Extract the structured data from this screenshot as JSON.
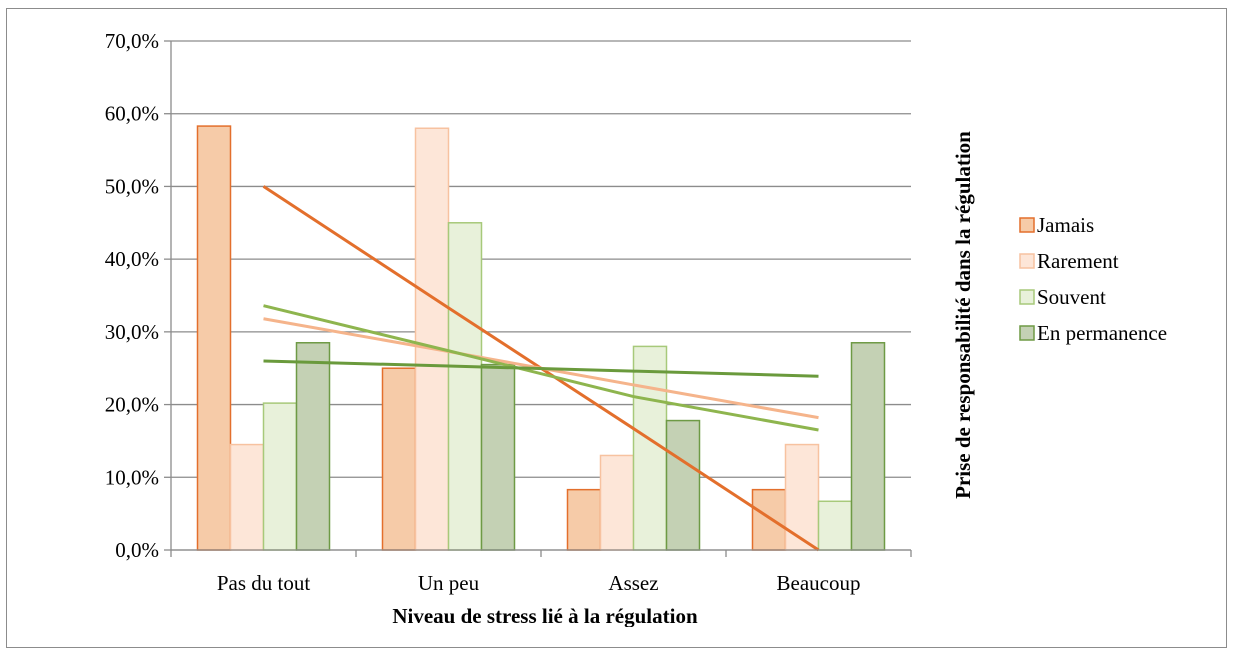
{
  "chart_data": {
    "type": "bar",
    "categories": [
      "Pas du tout",
      "Un peu",
      "Assez",
      "Beaucoup"
    ],
    "series": [
      {
        "name": "Jamais",
        "values": [
          58.3,
          25.0,
          8.3,
          8.3
        ],
        "fill": "#f6cba8",
        "stroke": "#e36f2c",
        "trend": [
          50.0,
          33.3,
          16.7,
          0.0
        ],
        "trend_color": "#e36f2c"
      },
      {
        "name": "Rarement",
        "values": [
          14.5,
          58.0,
          13.0,
          14.5
        ],
        "fill": "#fde6d8",
        "stroke": "#f7c2a0",
        "trend": [
          31.8,
          27.3,
          22.7,
          18.2
        ],
        "trend_color": "#f5b48b"
      },
      {
        "name": "Souvent",
        "values": [
          20.2,
          45.0,
          28.0,
          6.7
        ],
        "fill": "#e8f1da",
        "stroke": "#a7c97a",
        "trend": [
          33.6,
          27.4,
          21.1,
          16.5
        ],
        "trend_color": "#8eb54e"
      },
      {
        "name": "En permanence",
        "values": [
          28.5,
          25.5,
          17.8,
          28.5
        ],
        "fill": "#c4d1b4",
        "stroke": "#6e9a45",
        "trend": [
          26.0,
          25.3,
          24.6,
          23.9
        ],
        "trend_color": "#6a9a3c"
      }
    ],
    "y_ticks": [
      "0,0%",
      "10,0%",
      "20,0%",
      "30,0%",
      "40,0%",
      "50,0%",
      "60,0%",
      "70,0%"
    ],
    "ylim": [
      0,
      70
    ],
    "xlabel": "Niveau de stress lié à la régulation",
    "ylabel": "Prise de responsabilité dans la régulation",
    "grid": true,
    "legend_position": "right"
  }
}
